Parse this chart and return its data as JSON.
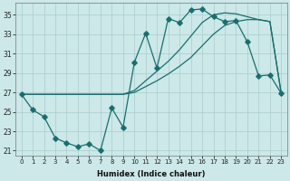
{
  "xlabel": "Humidex (Indice chaleur)",
  "bg_color": "#cce8e8",
  "grid_color": "#aacccc",
  "line_color": "#1a6e6e",
  "xlim": [
    -0.5,
    23.5
  ],
  "ylim": [
    20.5,
    36.2
  ],
  "xticks": [
    0,
    1,
    2,
    3,
    4,
    5,
    6,
    7,
    8,
    9,
    10,
    11,
    12,
    13,
    14,
    15,
    16,
    17,
    18,
    19,
    20,
    21,
    22,
    23
  ],
  "yticks": [
    21,
    23,
    25,
    27,
    29,
    31,
    33,
    35
  ],
  "series1_x": [
    0,
    1,
    2,
    3,
    4,
    5,
    6,
    7,
    8,
    9,
    10,
    11,
    12,
    13,
    14,
    15,
    16,
    17,
    18,
    19,
    20,
    21,
    22,
    23
  ],
  "series1_y": [
    26.8,
    25.2,
    24.5,
    22.3,
    21.8,
    21.4,
    21.7,
    21.0,
    25.4,
    23.4,
    30.1,
    33.1,
    29.5,
    34.6,
    34.2,
    35.5,
    35.6,
    34.8,
    34.3,
    34.4,
    32.2,
    28.7,
    28.8,
    26.9
  ],
  "env_top_x": [
    0,
    1,
    2,
    3,
    4,
    5,
    6,
    7,
    8,
    9,
    10,
    11,
    12,
    13,
    14,
    15,
    16,
    17,
    18,
    19,
    20,
    21,
    22,
    23
  ],
  "env_top_y": [
    26.8,
    26.8,
    26.8,
    26.8,
    26.8,
    26.8,
    26.8,
    26.8,
    26.8,
    26.8,
    27.2,
    28.2,
    29.2,
    30.2,
    31.4,
    32.8,
    34.2,
    35.0,
    35.2,
    35.1,
    34.8,
    34.5,
    34.3,
    26.9
  ],
  "env_bot_x": [
    0,
    1,
    2,
    3,
    4,
    5,
    6,
    7,
    8,
    9,
    10,
    11,
    12,
    13,
    14,
    15,
    16,
    17,
    18,
    19,
    20,
    21,
    22,
    23
  ],
  "env_bot_y": [
    26.8,
    26.8,
    26.8,
    26.8,
    26.8,
    26.8,
    26.8,
    26.8,
    26.8,
    26.8,
    27.0,
    27.6,
    28.2,
    28.9,
    29.7,
    30.6,
    31.8,
    33.0,
    33.9,
    34.3,
    34.5,
    34.5,
    34.3,
    26.9
  ]
}
